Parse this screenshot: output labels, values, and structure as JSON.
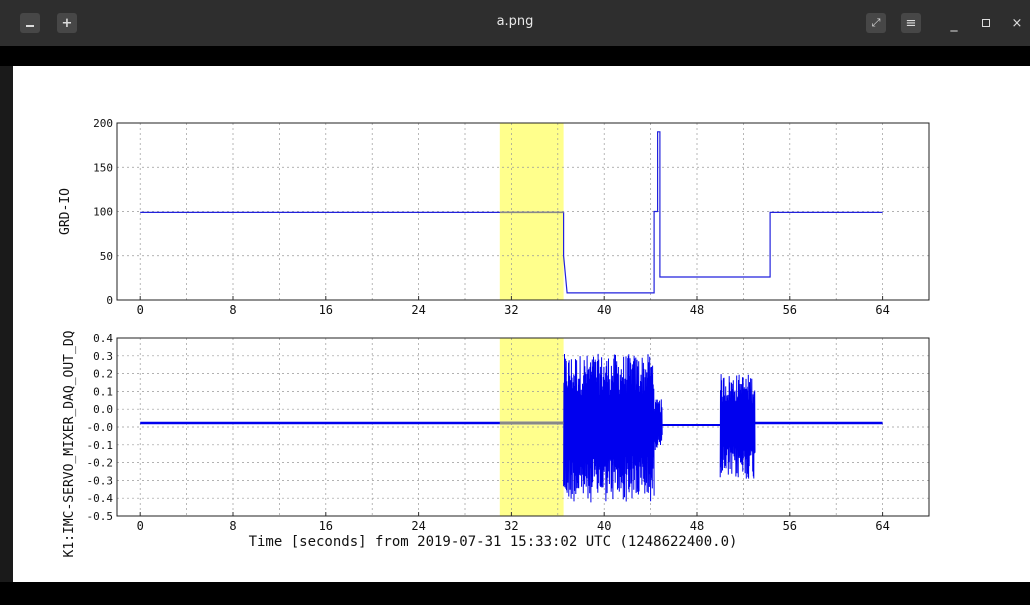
{
  "window": {
    "title": "a.png",
    "icons": [
      "image-icon",
      "new-tab-icon",
      "fullscreen-icon",
      "menu-icon",
      "minimize-icon",
      "maximize-icon",
      "close-icon"
    ],
    "accent": "#2e2e2e"
  },
  "chart_data": [
    {
      "type": "line",
      "ylabel": "GRD-IO",
      "ylim": [
        0,
        200
      ],
      "yticks": [
        "200",
        "150",
        "100",
        "50",
        "0"
      ],
      "xlim": [
        -2,
        68
      ],
      "xticks": [
        "0",
        "8",
        "16",
        "24",
        "32",
        "40",
        "48",
        "56",
        "64"
      ],
      "highlight": {
        "x": [
          31,
          36.5
        ],
        "color": "#ffff66"
      },
      "series": [
        {
          "color": "#2222dd",
          "x": [
            0,
            36.5,
            36.5,
            36.8,
            44.3,
            44.3,
            44.6,
            44.6,
            44.8,
            44.8,
            44.9,
            44.9,
            54.3,
            54.3,
            64
          ],
          "y": [
            99,
            99,
            50,
            8,
            8,
            100,
            100,
            190,
            190,
            26,
            26,
            26,
            26,
            99,
            99
          ]
        }
      ],
      "grid": true
    },
    {
      "type": "line",
      "ylabel": "K1:IMC-SERVO_MIXER_DAQ_OUT_DQ",
      "ylim": [
        -0.5,
        0.4
      ],
      "yticks": [
        "0.4",
        "0.3",
        "0.2",
        "0.1",
        "0.0",
        "-0.0",
        "-0.1",
        "-0.2",
        "-0.3",
        "-0.4",
        "-0.5"
      ],
      "xlim": [
        -2,
        68
      ],
      "xticks": [
        "0",
        "8",
        "16",
        "24",
        "32",
        "40",
        "48",
        "56",
        "64"
      ],
      "xlabel": "Time [seconds] from 2019-07-31 15:33:02 UTC (1248622400.0)",
      "highlight": {
        "x": [
          31,
          36.5
        ],
        "color": "#ffff66"
      },
      "baseline": -0.03,
      "bursts": [
        {
          "x": [
            36.5,
            44.3
          ],
          "amplitude": 0.35
        },
        {
          "x": [
            44.3,
            45.0
          ],
          "amplitude": 0.12
        },
        {
          "x": [
            50.0,
            53.0
          ],
          "amplitude": 0.25
        }
      ],
      "series": [
        {
          "color": "#0000ee"
        }
      ],
      "grid": true
    }
  ]
}
